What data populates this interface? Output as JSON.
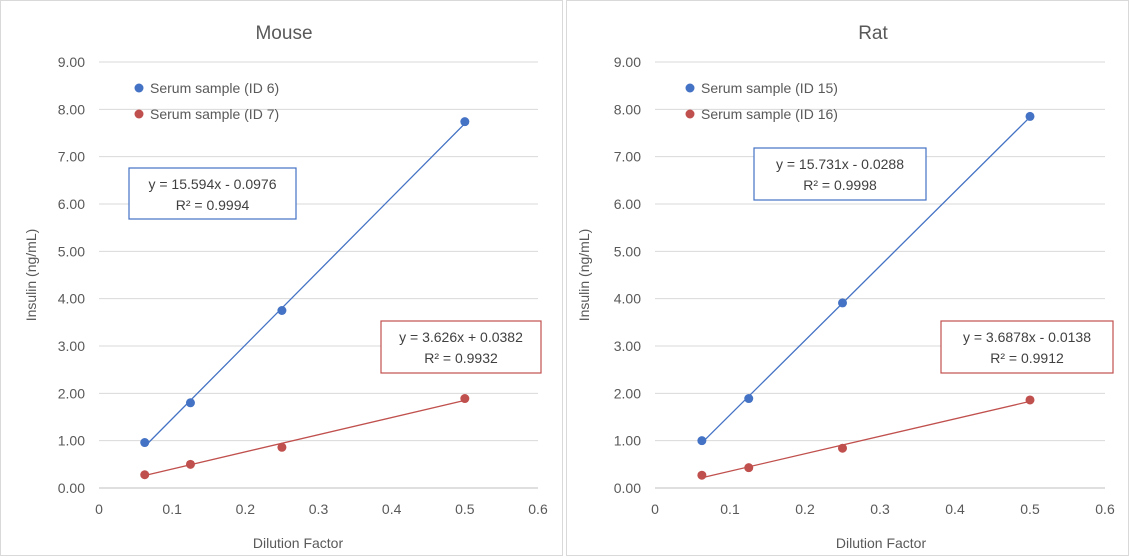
{
  "chart_data": [
    {
      "type": "scatter",
      "title": "Mouse",
      "xlabel": "Dilution Factor",
      "ylabel": "Insulin (ng/mL)",
      "xlim": [
        0,
        0.6
      ],
      "ylim": [
        0,
        9
      ],
      "xticks": [
        "0",
        "0.1",
        "0.2",
        "0.3",
        "0.4",
        "0.5",
        "0.6"
      ],
      "yticks": [
        "0.00",
        "1.00",
        "2.00",
        "3.00",
        "4.00",
        "5.00",
        "6.00",
        "7.00",
        "8.00",
        "9.00"
      ],
      "grid": "horizontal",
      "legend_position": "top-left",
      "series": [
        {
          "name": "Serum sample (ID 6)",
          "color": "#4472c4",
          "x": [
            0.0625,
            0.125,
            0.25,
            0.5
          ],
          "y": [
            0.96,
            1.8,
            3.75,
            7.74
          ],
          "trendline": {
            "slope": 15.594,
            "intercept": -0.0976,
            "equation": "y = 15.594x - 0.0976",
            "r2": "R² = 0.9994"
          }
        },
        {
          "name": "Serum sample (ID 7)",
          "color": "#c0504d",
          "x": [
            0.0625,
            0.125,
            0.25,
            0.5
          ],
          "y": [
            0.28,
            0.5,
            0.86,
            1.89
          ],
          "trendline": {
            "slope": 3.626,
            "intercept": 0.0382,
            "equation": "y = 3.626x + 0.0382",
            "r2": "R² = 0.9932"
          }
        }
      ]
    },
    {
      "type": "scatter",
      "title": "Rat",
      "xlabel": "Dilution Factor",
      "ylabel": "Insulin (ng/mL)",
      "xlim": [
        0,
        0.6
      ],
      "ylim": [
        0,
        9
      ],
      "xticks": [
        "0",
        "0.1",
        "0.2",
        "0.3",
        "0.4",
        "0.5",
        "0.6"
      ],
      "yticks": [
        "0.00",
        "1.00",
        "2.00",
        "3.00",
        "4.00",
        "5.00",
        "6.00",
        "7.00",
        "8.00",
        "9.00"
      ],
      "grid": "horizontal",
      "legend_position": "top-left",
      "series": [
        {
          "name": "Serum sample (ID 15)",
          "color": "#4472c4",
          "x": [
            0.0625,
            0.125,
            0.25,
            0.5
          ],
          "y": [
            1.0,
            1.89,
            3.91,
            7.85
          ],
          "trendline": {
            "slope": 15.731,
            "intercept": -0.0288,
            "equation": "y = 15.731x - 0.0288",
            "r2": "R² = 0.9998"
          }
        },
        {
          "name": "Serum sample (ID 16)",
          "color": "#c0504d",
          "x": [
            0.0625,
            0.125,
            0.25,
            0.5
          ],
          "y": [
            0.27,
            0.43,
            0.84,
            1.86
          ],
          "trendline": {
            "slope": 3.6878,
            "intercept": -0.0138,
            "equation": "y = 3.6878x - 0.0138",
            "r2": "R² = 0.9912"
          }
        }
      ]
    }
  ]
}
